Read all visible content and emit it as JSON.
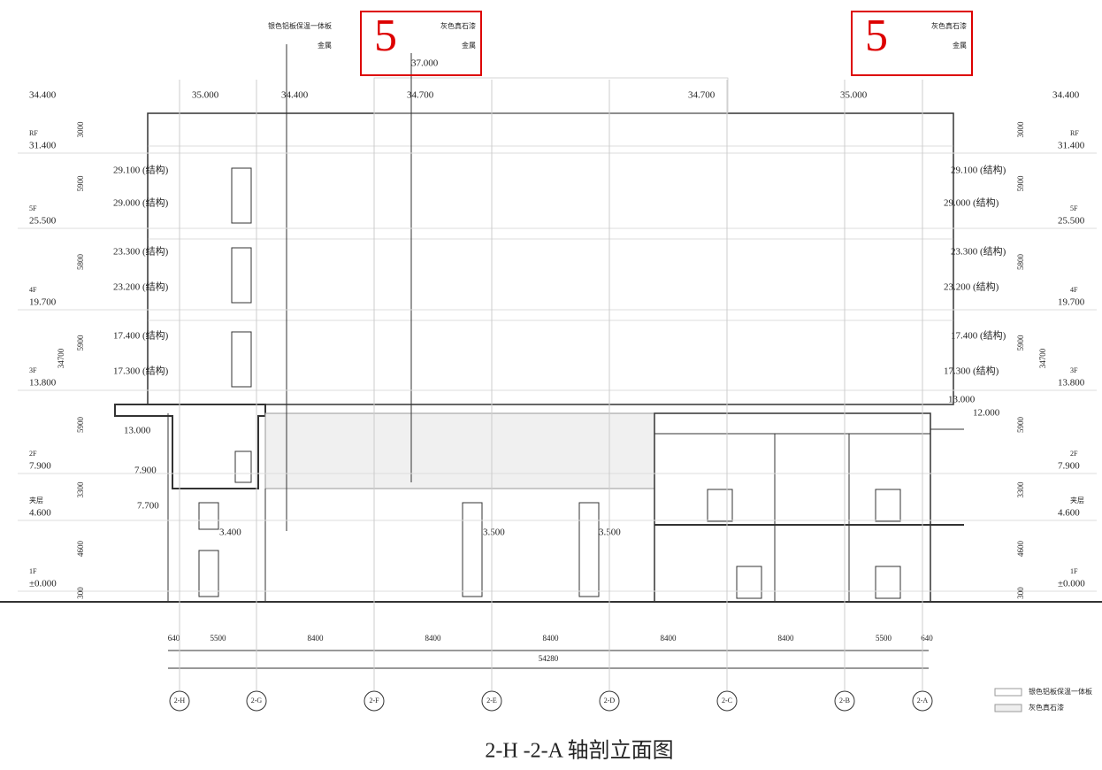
{
  "title": "2-H   -2-A  轴剖立面图",
  "callouts": [
    {
      "number": "5",
      "material": "灰色真石漆",
      "note": "金属",
      "elevation": "37.000"
    },
    {
      "number": "5",
      "material": "灰色真石漆",
      "note": "金属"
    }
  ],
  "top_note": {
    "material": "银色铝板保温一体板",
    "note": "金属"
  },
  "top_elevations": [
    "34.400",
    "35.000",
    "34.400",
    "34.700",
    "34.700",
    "35.000",
    "34.400"
  ],
  "levels": [
    {
      "name": "RF",
      "elevation": "31.400"
    },
    {
      "name": "5F",
      "elevation": "25.500"
    },
    {
      "name": "4F",
      "elevation": "19.700"
    },
    {
      "name": "3F",
      "elevation": "13.800"
    },
    {
      "name": "2F",
      "elevation": "7.900"
    },
    {
      "name": "夹层",
      "elevation": "4.600"
    },
    {
      "name": "1F",
      "elevation": "±0.000"
    }
  ],
  "level_dims": [
    "3000",
    "5900",
    "5800",
    "5900",
    "5900",
    "3300",
    "4600",
    "300"
  ],
  "total_height": "34700",
  "inner_labels": [
    "29.100 (结构)",
    "29.000 (结构)",
    "23.300 (结构)",
    "23.200 (结构)",
    "17.400 (结构)",
    "17.300 (结构)",
    "13.000",
    "7.900",
    "7.700",
    "3.400",
    "3.500",
    "3.500",
    "12.000",
    "13.000"
  ],
  "axis_dims": [
    "640",
    "5500",
    "8400",
    "8400",
    "8400",
    "8400",
    "8400",
    "5500",
    "640"
  ],
  "total_width": "54280",
  "axes": [
    "2-H",
    "2-G",
    "2-F",
    "2-E",
    "2-D",
    "2-C",
    "2-B",
    "2-A"
  ],
  "legend": [
    "银色铝板保温一体板",
    "灰色真石漆"
  ]
}
